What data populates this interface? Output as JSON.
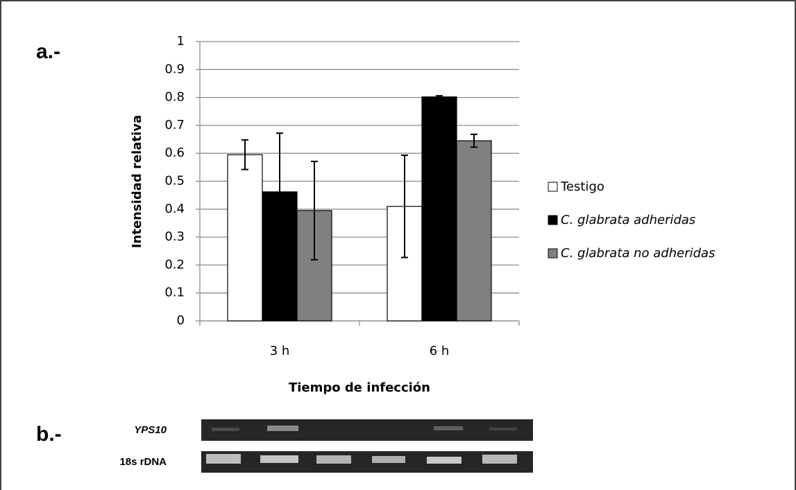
{
  "panel_a": "a.-",
  "panel_b": "b.-",
  "gel": {
    "lanes": [
      "YPS10",
      "18s rDNA"
    ]
  },
  "chart_data": {
    "type": "bar",
    "x_label": "Tiempo de infección",
    "y_label": "Intensidad relativa",
    "categories": [
      "3 h",
      "6 h"
    ],
    "series": [
      {
        "name": "Testigo",
        "color": "#ffffff",
        "values": [
          0.595,
          0.41
        ],
        "errors": [
          0.053,
          0.183
        ]
      },
      {
        "name": "C. glabrata adheridas",
        "color": "#000000",
        "values": [
          0.462,
          0.802
        ],
        "errors": [
          0.21,
          0.004
        ]
      },
      {
        "name": "C. glabrata no adheridas",
        "color": "#808080",
        "values": [
          0.395,
          0.645
        ],
        "errors": [
          0.176,
          0.023
        ]
      }
    ],
    "ylim": [
      0,
      1
    ],
    "yticks": [
      0,
      0.1,
      0.2,
      0.3,
      0.4,
      0.5,
      0.6,
      0.7,
      0.8,
      0.9,
      1
    ],
    "grid": true,
    "legend": "right"
  }
}
